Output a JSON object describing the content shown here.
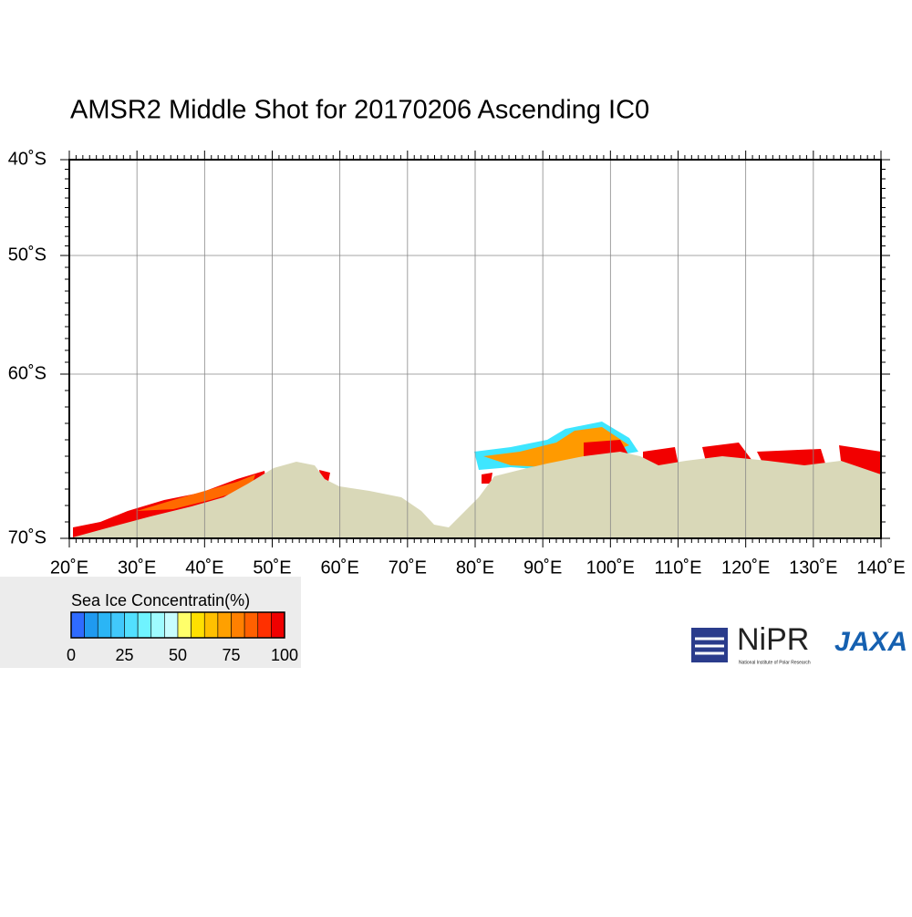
{
  "title": "AMSR2 Middle Shot for 20170206 Ascending IC0",
  "lat_labels": [
    "40˚S",
    "50˚S",
    "60˚S",
    "70˚S"
  ],
  "lon_labels": [
    "20˚E",
    "30˚E",
    "40˚E",
    "50˚E",
    "60˚E",
    "70˚E",
    "80˚E",
    "90˚E",
    "100˚E",
    "110˚E",
    "120˚E",
    "130˚E",
    "140˚E"
  ],
  "colorbar": {
    "title": "Sea Ice Concentratin(%)",
    "labels": [
      "0",
      "25",
      "50",
      "75",
      "100"
    ]
  },
  "logos": {
    "nipr": "NiPR",
    "nipr_full": "National Institute of Polar Research",
    "jaxa": "JAXA"
  }
}
